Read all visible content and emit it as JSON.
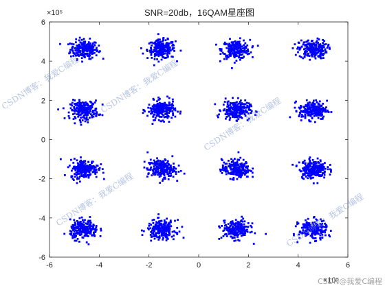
{
  "chart_data": {
    "type": "scatter",
    "title": "SNR=20db，16QAM星座图",
    "xlabel": "",
    "ylabel": "",
    "x_exponent": "×10⁵",
    "y_exponent": "×10⁵",
    "xlim": [
      -6,
      6
    ],
    "ylim": [
      -6,
      6
    ],
    "xticks": [
      "-6",
      "-4",
      "-2",
      "0",
      "2",
      "4",
      "6"
    ],
    "yticks": [
      "-6",
      "-4",
      "-2",
      "0",
      "2",
      "4",
      "6"
    ],
    "marker_color": "#0000ff",
    "marker": "small filled square",
    "grid": false,
    "series": [
      {
        "name": "",
        "cluster_centers": [
          [
            -4.6,
            4.6
          ],
          [
            -1.5,
            4.6
          ],
          [
            1.5,
            4.6
          ],
          [
            4.6,
            4.6
          ],
          [
            -4.6,
            1.5
          ],
          [
            -1.5,
            1.5
          ],
          [
            1.5,
            1.5
          ],
          [
            4.6,
            1.5
          ],
          [
            -4.6,
            -1.5
          ],
          [
            -1.5,
            -1.5
          ],
          [
            1.5,
            -1.5
          ],
          [
            4.6,
            -1.5
          ],
          [
            -4.6,
            -4.6
          ],
          [
            -1.5,
            -4.6
          ],
          [
            1.5,
            -4.6
          ],
          [
            4.6,
            -4.6
          ]
        ],
        "cluster_spread": 0.28
      }
    ]
  },
  "watermarks": [
    "CSDN博客：我爱C编程",
    "CSDN博客：我爱C编程",
    "CSDN博客：我爱C编程",
    "CSDN博客：我爱C编程",
    "CSDN博客：我爱C编程"
  ],
  "corner_watermark": "CSDN@我爱C编程"
}
